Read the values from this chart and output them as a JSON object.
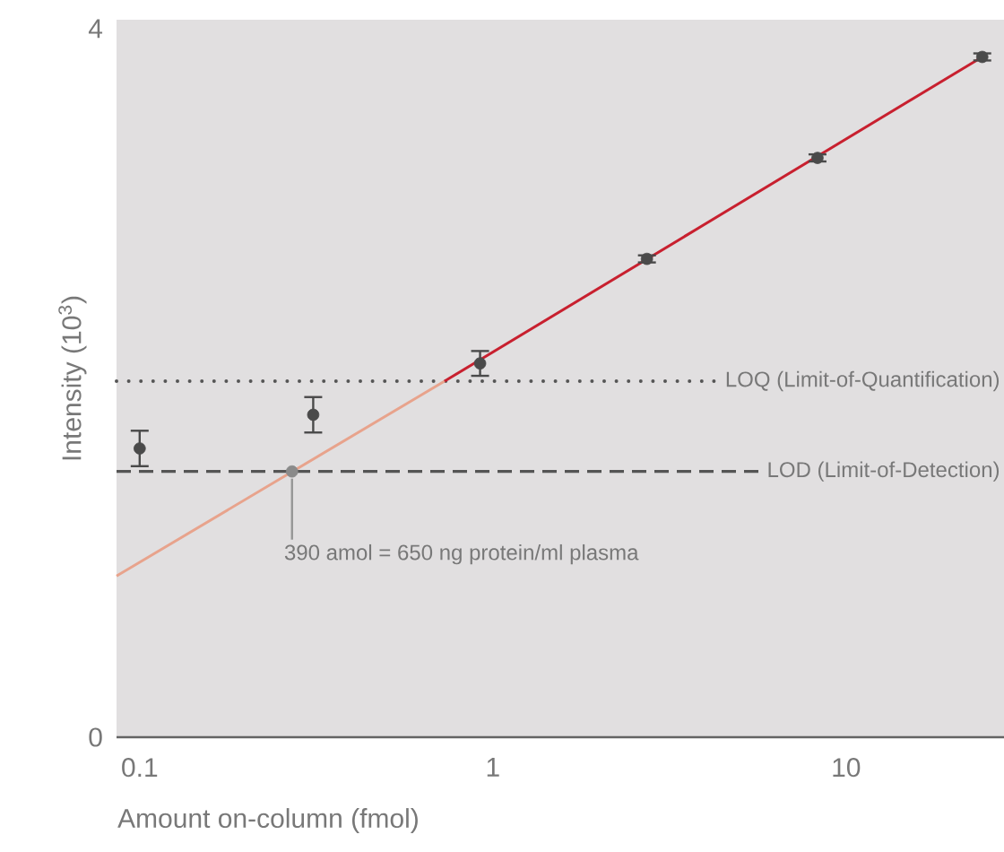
{
  "chart_data": {
    "type": "scatter",
    "xlabel": "Amount on-column (fmol)",
    "ylabel": "Intensity (10$^{3}$)",
    "log": "x",
    "xlim": [
      0.086,
      28
    ],
    "ylim": [
      0,
      4.05
    ],
    "xticks": [
      0.1,
      1,
      10
    ],
    "yticks": [
      0,
      4
    ],
    "grid": false,
    "series": [
      {
        "type": "line",
        "color": "#e8a38c",
        "x": [
          0.086,
          0.73
        ],
        "values": [
          0.91,
          2.01
        ],
        "marker": "none"
      },
      {
        "type": "line",
        "color": "#c8202f",
        "x": [
          0.73,
          24.3
        ],
        "values": [
          2.01,
          3.84
        ],
        "marker": "none"
      },
      {
        "color": "#4a4a4a",
        "x": [
          0.1,
          0.31,
          0.92,
          2.73,
          8.3,
          24.3
        ],
        "values": [
          1.63,
          1.82,
          2.11,
          2.7,
          3.27,
          3.84
        ],
        "errors": [
          0.1,
          0.1,
          0.07,
          0.02,
          0.02,
          0.02
        ],
        "marker": "circle"
      },
      {
        "color": "#8a8a8a",
        "x": [
          0.27
        ],
        "values": [
          1.5
        ],
        "marker": "circle"
      }
    ],
    "ref_lines": [
      {
        "axis": "y",
        "value": 2.01,
        "label": "LOQ (Limit-of-Quantification)",
        "line_style": "dotted",
        "color": "#555555"
      },
      {
        "axis": "y",
        "value": 1.5,
        "label": "LOD (Limit-of-Detection)",
        "line_style": "dashed",
        "color": "#555555"
      }
    ],
    "annotations": [
      {
        "text": "390 amol = 650 ng protein/ml plasma",
        "x": 0.27,
        "y": 1.5
      }
    ]
  }
}
